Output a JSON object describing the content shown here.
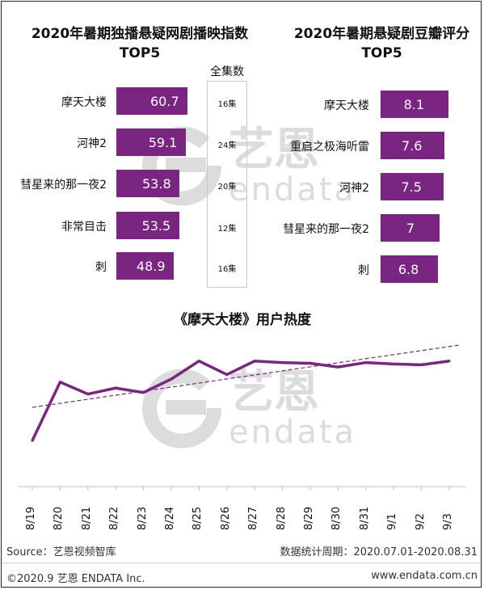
{
  "chart_data": [
    {
      "type": "bar",
      "title": "2020年暑期独播悬疑网剧播映指数TOP5",
      "categories": [
        "摩天大楼",
        "河神2",
        "彗星来的那一夜2",
        "非常目击",
        "刺"
      ],
      "values": [
        60.7,
        59.1,
        53.8,
        53.5,
        48.9
      ],
      "episodes_header": "全集数",
      "episodes": [
        "16集",
        "24集",
        "20集",
        "12集",
        "16集"
      ]
    },
    {
      "type": "bar",
      "title": "2020年暑期悬疑剧豆瓣评分TOP5",
      "categories": [
        "摩天大楼",
        "重启之极海听雷",
        "河神2",
        "彗星来的那一夜2",
        "刺"
      ],
      "values": [
        8.1,
        7.6,
        7.5,
        7,
        6.8
      ],
      "value_labels": [
        "8.1",
        "7.6",
        "7.5",
        "7",
        "6.8"
      ]
    },
    {
      "type": "line",
      "title": "《摩天大楼》用户热度",
      "x": [
        "8/19",
        "8/20",
        "8/21",
        "8/22",
        "8/23",
        "8/24",
        "8/25",
        "8/26",
        "8/27",
        "8/28",
        "8/29",
        "8/30",
        "8/31",
        "9/1",
        "9/2",
        "9/3"
      ],
      "values": [
        38,
        77,
        69,
        73,
        70,
        79,
        91,
        82,
        91,
        90,
        89.5,
        87,
        90,
        89,
        88.5,
        91
      ],
      "trendline": true,
      "y_axis_visible": false
    }
  ],
  "footer": {
    "source": "Source：艺恩视频智库",
    "period": "数据统计周期：2020.07.01-2020.08.31",
    "copyright": "©2020.9 艺恩 ENDATA Inc.",
    "website": "www.endata.com.cn"
  },
  "watermark": {
    "cn": "艺恩",
    "en": "endata"
  },
  "colors": {
    "bar": "#7b2582",
    "line": "#7b2582",
    "trend": "#7b2582",
    "watermark": "#d9d9d9"
  }
}
